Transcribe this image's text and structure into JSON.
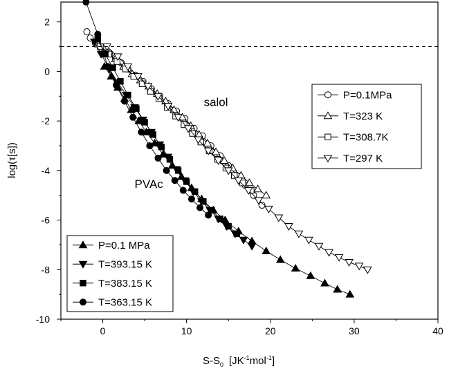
{
  "chart_data": {
    "type": "scatter",
    "xlabel": {
      "base": "S-S",
      "sub": "0",
      "units_a": "[JK",
      "sup1": "-1",
      "units_b": "mol",
      "sup2": "-1",
      "units_c": "]"
    },
    "ylabel": "log(τ[s])",
    "xlim": [
      -5,
      40
    ],
    "ylim": [
      -10,
      2.8
    ],
    "xticks": [
      0,
      10,
      20,
      30,
      40
    ],
    "yticks": [
      2,
      0,
      -2,
      -4,
      -6,
      -8,
      -10
    ],
    "reference_line": {
      "y": 1,
      "style": "dashed"
    },
    "annotations": [
      {
        "text": "salol",
        "x": 13.5,
        "y": -1.4
      },
      {
        "text": "PVAc",
        "x": 5.5,
        "y": -4.7
      }
    ],
    "legends": [
      {
        "position": "right-middle",
        "series": [
          "P=0.1MPa",
          "T=323 K",
          "T=308.7K",
          "T=297 K"
        ]
      },
      {
        "position": "bottom-left",
        "series": [
          "P=0.1 MPa",
          "T=393.15 K",
          "T=383.15 K",
          "T=363.15 K"
        ]
      }
    ],
    "series": [
      {
        "name": "P=0.1MPa",
        "marker": "circle-open",
        "line": true,
        "x": [
          -1.9,
          -1.5,
          -0.9,
          -0.3,
          0.2,
          0.8,
          1.5,
          2.2,
          3.0,
          3.9,
          4.8,
          5.8,
          6.8,
          7.8,
          8.8,
          9.8,
          10.9,
          11.9,
          12.9,
          14.0,
          15.0,
          16.0,
          17.0,
          18.0,
          19.0
        ],
        "y": [
          1.6,
          1.35,
          1.15,
          1.0,
          0.9,
          0.75,
          0.55,
          0.35,
          0.1,
          -0.15,
          -0.4,
          -0.7,
          -1.0,
          -1.3,
          -1.6,
          -1.9,
          -2.3,
          -2.6,
          -3.0,
          -3.4,
          -3.8,
          -4.2,
          -4.6,
          -5.0,
          -5.4
        ]
      },
      {
        "name": "T=323 K",
        "marker": "triangle-up-open",
        "line": true,
        "x": [
          -0.5,
          0.5,
          1.5,
          2.5,
          3.5,
          4.5,
          5.5,
          6.5,
          7.5,
          8.5,
          9.5,
          10.5,
          11.5,
          12.5,
          13.5,
          14.5,
          15.5,
          16.5,
          17.5,
          18.5,
          19.5
        ],
        "y": [
          1.1,
          0.8,
          0.5,
          0.2,
          -0.1,
          -0.35,
          -0.6,
          -0.9,
          -1.2,
          -1.55,
          -1.85,
          -2.2,
          -2.55,
          -2.9,
          -3.25,
          -3.6,
          -3.9,
          -4.2,
          -4.5,
          -4.75,
          -5.0
        ]
      },
      {
        "name": "T=308.7K",
        "marker": "square-open",
        "line": true,
        "x": [
          -0.3,
          0.7,
          1.7,
          2.7,
          3.7,
          4.7,
          5.7,
          6.7,
          7.7,
          8.7,
          9.7,
          10.7,
          11.7,
          12.7,
          13.7,
          14.7,
          15.7,
          16.7,
          17.7
        ],
        "y": [
          1.0,
          0.7,
          0.4,
          0.1,
          -0.2,
          -0.5,
          -0.8,
          -1.1,
          -1.45,
          -1.8,
          -2.15,
          -2.5,
          -2.85,
          -3.2,
          -3.55,
          -3.9,
          -4.2,
          -4.5,
          -4.8
        ]
      },
      {
        "name": "T=297 K",
        "marker": "triangle-down-open",
        "line": true,
        "x": [
          0.5,
          1.8,
          3.0,
          4.2,
          5.4,
          6.6,
          7.8,
          9.0,
          10.2,
          11.4,
          12.6,
          13.8,
          15.0,
          16.2,
          17.4,
          18.6,
          19.8,
          21.0,
          22.2,
          23.4,
          24.6,
          25.8,
          27.0,
          28.2,
          29.4,
          30.6,
          31.6
        ],
        "y": [
          1.0,
          0.6,
          0.2,
          -0.2,
          -0.6,
          -1.0,
          -1.4,
          -1.85,
          -2.3,
          -2.75,
          -3.2,
          -3.6,
          -4.0,
          -4.4,
          -4.8,
          -5.2,
          -5.55,
          -5.9,
          -6.25,
          -6.55,
          -6.8,
          -7.05,
          -7.3,
          -7.5,
          -7.7,
          -7.85,
          -8.0
        ]
      },
      {
        "name": "P=0.1 MPa",
        "marker": "triangle-up-filled",
        "line": true,
        "x": [
          0.2,
          1.0,
          1.8,
          2.6,
          3.4,
          4.3,
          5.2,
          6.2,
          7.2,
          8.3,
          9.4,
          10.6,
          11.8,
          13.2,
          14.6,
          16.2,
          17.8,
          19.5,
          21.2,
          23.0,
          24.8,
          26.5,
          28.0,
          29.5
        ],
        "y": [
          0.2,
          -0.2,
          -0.65,
          -1.1,
          -1.55,
          -2.0,
          -2.45,
          -2.9,
          -3.35,
          -3.8,
          -4.25,
          -4.7,
          -5.15,
          -5.6,
          -6.0,
          -6.45,
          -6.85,
          -7.25,
          -7.6,
          -7.95,
          -8.25,
          -8.55,
          -8.8,
          -9.0
        ]
      },
      {
        "name": "T=393.15 K",
        "marker": "triangle-down-filled",
        "line": true,
        "x": [
          -1.0,
          -0.2,
          0.8,
          1.8,
          2.8,
          3.8,
          4.8,
          5.8,
          6.8,
          7.8,
          8.8,
          9.8,
          10.8,
          11.8,
          12.8,
          13.8,
          14.8,
          15.8,
          16.8,
          17.8
        ],
        "y": [
          1.2,
          0.7,
          0.1,
          -0.45,
          -0.95,
          -1.45,
          -1.95,
          -2.45,
          -2.95,
          -3.45,
          -3.95,
          -4.4,
          -4.85,
          -5.25,
          -5.6,
          -5.95,
          -6.25,
          -6.55,
          -6.8,
          -7.05
        ]
      },
      {
        "name": "T=383.15 K",
        "marker": "square-filled",
        "line": true,
        "x": [
          -0.6,
          0.3,
          1.2,
          2.1,
          3.0,
          4.0,
          5.0,
          6.0,
          7.0,
          8.0,
          9.0,
          10.0,
          11.0,
          12.0,
          13.0,
          14.0,
          15.0,
          16.0
        ],
        "y": [
          1.3,
          0.7,
          0.15,
          -0.4,
          -0.95,
          -1.5,
          -2.05,
          -2.55,
          -3.05,
          -3.55,
          -4.0,
          -4.45,
          -4.85,
          -5.25,
          -5.6,
          -5.95,
          -6.25,
          -6.55
        ]
      },
      {
        "name": "T=363.15 K",
        "marker": "circle-filled",
        "line": true,
        "x": [
          -2.0,
          -0.6,
          0.6,
          1.6,
          2.6,
          3.6,
          4.6,
          5.6,
          6.6,
          7.6,
          8.6,
          9.6,
          10.6,
          11.6,
          12.6
        ],
        "y": [
          2.8,
          1.5,
          0.2,
          -0.55,
          -1.2,
          -1.85,
          -2.45,
          -3.0,
          -3.5,
          -4.0,
          -4.4,
          -4.8,
          -5.15,
          -5.5,
          -5.8
        ]
      }
    ]
  }
}
